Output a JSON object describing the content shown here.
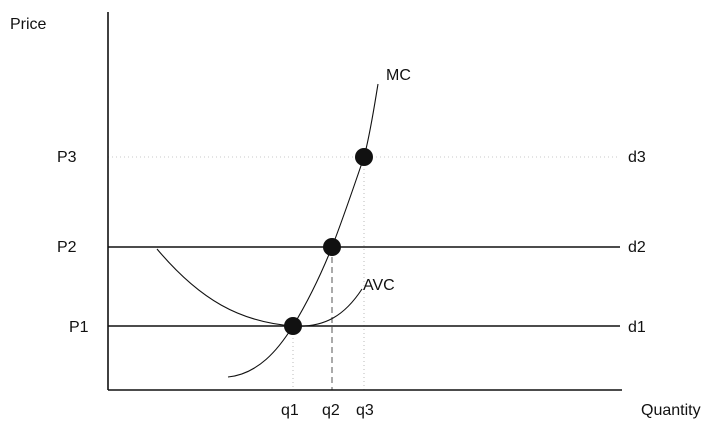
{
  "axes": {
    "y_label": "Price",
    "x_label": "Quantity"
  },
  "price_labels": {
    "p1": "P1",
    "p2": "P2",
    "p3": "P3"
  },
  "demand_labels": {
    "d1": "d1",
    "d2": "d2",
    "d3": "d3"
  },
  "quantity_labels": {
    "q1": "q1",
    "q2": "q2",
    "q3": "q3"
  },
  "curve_labels": {
    "mc": "MC",
    "avc": "AVC"
  },
  "colors": {
    "ink": "#111111",
    "dotted": "#bbbbbb",
    "dashed": "#555555"
  }
}
